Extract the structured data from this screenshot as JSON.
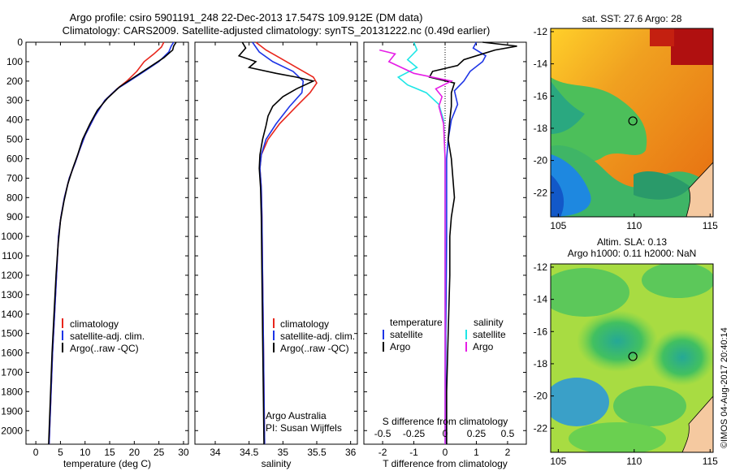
{
  "header": {
    "line1": "Argo profile: csiro 5901191_248 22-Dec-2013 17.547S 109.912E (DM data)",
    "line2": "Climatology: CARS2009. Satellite-adjusted climatology: synTS_20131222.nc (0.49d earlier)"
  },
  "colors": {
    "climatology": "#e8261c",
    "satellite": "#1e35e6",
    "argo": "#000000",
    "sal_satellite": "#1ee6e6",
    "sal_argo": "#e61ee6"
  },
  "chart_data": [
    {
      "type": "line",
      "id": "temperature",
      "xlabel": "temperature (deg C)",
      "xlim": [
        -2,
        31
      ],
      "ylim": [
        0,
        2070
      ],
      "xticks": [
        0,
        5,
        10,
        15,
        20,
        25,
        30
      ],
      "yticks": [
        0,
        100,
        200,
        300,
        400,
        500,
        600,
        700,
        800,
        900,
        1000,
        1100,
        1200,
        1300,
        1400,
        1500,
        1600,
        1700,
        1800,
        1900,
        2000
      ],
      "legend": [
        "climatology",
        "satellite-adj. clim.",
        "Argo(..raw -QC)"
      ],
      "series": [
        {
          "name": "climatology",
          "color": "climatology",
          "points": [
            [
              26,
              0
            ],
            [
              25.5,
              25
            ],
            [
              24,
              60
            ],
            [
              22,
              100
            ],
            [
              20.5,
              150
            ],
            [
              18.5,
              200
            ],
            [
              16.5,
              240
            ],
            [
              14,
              300
            ],
            [
              12,
              380
            ],
            [
              10,
              480
            ],
            [
              8.8,
              560
            ],
            [
              8,
              620
            ],
            [
              6.8,
              700
            ],
            [
              5.8,
              800
            ],
            [
              5.1,
              900
            ],
            [
              4.6,
              1000
            ],
            [
              4.2,
              1200
            ],
            [
              3.8,
              1400
            ],
            [
              3.4,
              1600
            ],
            [
              3.1,
              1800
            ],
            [
              2.8,
              2000
            ],
            [
              2.7,
              2070
            ]
          ]
        },
        {
          "name": "satellite-adj. clim.",
          "color": "satellite",
          "points": [
            [
              28,
              0
            ],
            [
              27.5,
              20
            ],
            [
              27,
              50
            ],
            [
              25,
              100
            ],
            [
              22,
              150
            ],
            [
              19,
              200
            ],
            [
              16.5,
              240
            ],
            [
              14,
              300
            ],
            [
              12,
              380
            ],
            [
              10,
              480
            ],
            [
              8.8,
              560
            ],
            [
              8,
              620
            ],
            [
              6.8,
              700
            ],
            [
              5.8,
              800
            ],
            [
              5.1,
              900
            ],
            [
              4.6,
              1000
            ],
            [
              4.2,
              1200
            ],
            [
              3.8,
              1400
            ],
            [
              3.4,
              1600
            ],
            [
              3.1,
              1800
            ],
            [
              2.8,
              2000
            ],
            [
              2.7,
              2070
            ]
          ]
        },
        {
          "name": "Argo(..raw -QC)",
          "color": "argo",
          "points": [
            [
              28.5,
              0
            ],
            [
              28,
              20
            ],
            [
              27.8,
              40
            ],
            [
              26,
              80
            ],
            [
              23,
              130
            ],
            [
              20,
              180
            ],
            [
              17,
              230
            ],
            [
              14.5,
              290
            ],
            [
              12.5,
              350
            ],
            [
              11,
              420
            ],
            [
              9.5,
              500
            ],
            [
              8.5,
              580
            ],
            [
              7.5,
              650
            ],
            [
              6.5,
              730
            ],
            [
              5.7,
              820
            ],
            [
              5,
              920
            ],
            [
              4.5,
              1050
            ],
            [
              4.1,
              1200
            ],
            [
              3.7,
              1400
            ],
            [
              3.3,
              1600
            ],
            [
              3,
              1800
            ],
            [
              2.7,
              2000
            ],
            [
              2.6,
              2070
            ]
          ]
        }
      ]
    },
    {
      "type": "line",
      "id": "salinity",
      "xlabel": "salinity",
      "xlim": [
        33.7,
        36.1
      ],
      "ylim": [
        0,
        2070
      ],
      "xticks": [
        34,
        34.5,
        35,
        35.5,
        36
      ],
      "legend": [
        "climatology",
        "satellite-adj. clim.",
        "Argo(..raw -QC)"
      ],
      "annotations": [
        "Argo Australia",
        "PI: Susan Wijffels"
      ],
      "series": [
        {
          "name": "climatology",
          "color": "climatology",
          "points": [
            [
              34.6,
              0
            ],
            [
              34.75,
              40
            ],
            [
              34.95,
              80
            ],
            [
              35.2,
              130
            ],
            [
              35.45,
              180
            ],
            [
              35.5,
              210
            ],
            [
              35.4,
              260
            ],
            [
              35.2,
              330
            ],
            [
              34.95,
              420
            ],
            [
              34.78,
              500
            ],
            [
              34.68,
              580
            ],
            [
              34.66,
              650
            ],
            [
              34.68,
              750
            ],
            [
              34.69,
              900
            ],
            [
              34.7,
              1200
            ],
            [
              34.71,
              1500
            ],
            [
              34.72,
              1800
            ],
            [
              34.73,
              2070
            ]
          ]
        },
        {
          "name": "satellite-adj. clim.",
          "color": "satellite",
          "points": [
            [
              34.55,
              0
            ],
            [
              34.65,
              50
            ],
            [
              34.85,
              100
            ],
            [
              35.15,
              150
            ],
            [
              35.3,
              200
            ],
            [
              35.28,
              260
            ],
            [
              35.1,
              330
            ],
            [
              34.9,
              420
            ],
            [
              34.75,
              500
            ],
            [
              34.68,
              580
            ],
            [
              34.66,
              650
            ],
            [
              34.68,
              750
            ],
            [
              34.69,
              900
            ],
            [
              34.7,
              1200
            ],
            [
              34.71,
              1500
            ],
            [
              34.72,
              1800
            ],
            [
              34.73,
              2070
            ]
          ]
        },
        {
          "name": "Argo(..raw -QC)",
          "color": "argo",
          "points": [
            [
              34.4,
              0
            ],
            [
              34.45,
              30
            ],
            [
              34.35,
              70
            ],
            [
              34.6,
              100
            ],
            [
              34.5,
              130
            ],
            [
              34.9,
              160
            ],
            [
              35.2,
              180
            ],
            [
              35.45,
              200
            ],
            [
              35.2,
              240
            ],
            [
              35.0,
              280
            ],
            [
              34.85,
              330
            ],
            [
              34.78,
              380
            ],
            [
              34.75,
              430
            ],
            [
              34.7,
              500
            ],
            [
              34.66,
              580
            ],
            [
              34.65,
              650
            ],
            [
              34.67,
              750
            ],
            [
              34.68,
              900
            ],
            [
              34.69,
              1200
            ],
            [
              34.7,
              1500
            ],
            [
              34.71,
              1800
            ],
            [
              34.72,
              2070
            ]
          ]
        }
      ]
    },
    {
      "type": "line",
      "id": "difference",
      "xlabel": "T difference from climatology",
      "xlabel_top": "S difference from climatology",
      "xlim": [
        -2.6,
        2.6
      ],
      "ylim": [
        0,
        2070
      ],
      "xticks": [
        -2,
        -1,
        0,
        1,
        2
      ],
      "xticks_s": [
        "-0.5",
        "-0.25",
        "0",
        "0.25",
        "0.5"
      ],
      "legend_temperature": {
        "title": "temperature",
        "items": [
          "satellite",
          "Argo"
        ]
      },
      "legend_salinity": {
        "title": "salinity",
        "items": [
          "satellite",
          "Argo"
        ]
      },
      "series": [
        {
          "name": "satellite",
          "group": "temperature",
          "color": "satellite",
          "points": [
            [
              1.0,
              0
            ],
            [
              0.9,
              30
            ],
            [
              1.3,
              70
            ],
            [
              1.2,
              100
            ],
            [
              0.8,
              150
            ],
            [
              0.6,
              200
            ],
            [
              0.3,
              250
            ],
            [
              0.4,
              320
            ],
            [
              0.2,
              400
            ],
            [
              0.1,
              500
            ],
            [
              0.05,
              600
            ],
            [
              0.05,
              800
            ],
            [
              0.05,
              1000
            ],
            [
              0.02,
              1500
            ],
            [
              0.02,
              2070
            ]
          ]
        },
        {
          "name": "Argo",
          "group": "temperature",
          "color": "argo",
          "points": [
            [
              1.2,
              0
            ],
            [
              2.3,
              20
            ],
            [
              1.6,
              40
            ],
            [
              1.2,
              60
            ],
            [
              0.6,
              90
            ],
            [
              0.4,
              120
            ],
            [
              -0.4,
              150
            ],
            [
              -0.5,
              180
            ],
            [
              0.3,
              210
            ],
            [
              0.2,
              260
            ],
            [
              0.2,
              330
            ],
            [
              0.15,
              400
            ],
            [
              0.1,
              500
            ],
            [
              0.2,
              600
            ],
            [
              0.25,
              700
            ],
            [
              0.3,
              800
            ],
            [
              0.2,
              900
            ],
            [
              0.15,
              1000
            ],
            [
              0.15,
              1200
            ],
            [
              0.1,
              1500
            ],
            [
              0.05,
              1800
            ],
            [
              0.05,
              2070
            ]
          ]
        },
        {
          "name": "satellite",
          "group": "salinity",
          "color": "sal_satellite",
          "points": [
            [
              -1.0,
              0
            ],
            [
              -0.9,
              40
            ],
            [
              -1.2,
              90
            ],
            [
              -0.9,
              130
            ],
            [
              -1.5,
              180
            ],
            [
              -1.2,
              220
            ],
            [
              -0.6,
              260
            ],
            [
              -0.2,
              320
            ],
            [
              -0.05,
              400
            ],
            [
              0,
              600
            ],
            [
              0,
              2070
            ]
          ]
        },
        {
          "name": "Argo",
          "group": "salinity",
          "color": "sal_argo",
          "points": [
            [
              -2.1,
              40
            ],
            [
              -1.6,
              60
            ],
            [
              -1.8,
              100
            ],
            [
              -1.0,
              160
            ],
            [
              0.2,
              200
            ],
            [
              -0.3,
              240
            ],
            [
              -0.1,
              280
            ],
            [
              -0.2,
              330
            ],
            [
              -0.05,
              420
            ],
            [
              0,
              600
            ],
            [
              0,
              2070
            ]
          ]
        }
      ]
    },
    {
      "type": "heatmap",
      "id": "sst-map",
      "title": "sat. SST: 27.6 Argo: 28",
      "xlim": [
        104.5,
        115.2
      ],
      "ylim": [
        -23.5,
        -11.8
      ],
      "xticks": [
        105,
        110,
        115
      ],
      "yticks": [
        -12,
        -14,
        -16,
        -18,
        -20,
        -22
      ],
      "marker": {
        "lon": 109.912,
        "lat": -17.547
      }
    },
    {
      "type": "heatmap",
      "id": "sla-map",
      "title": "Altim. SLA: 0.13",
      "subtitle": "Argo h1000: 0.11 h2000: NaN",
      "xlim": [
        104.5,
        115.2
      ],
      "ylim": [
        -23.5,
        -11.8
      ],
      "xticks": [
        105,
        110,
        115
      ],
      "yticks": [
        -12,
        -14,
        -16,
        -18,
        -20,
        -22
      ],
      "marker": {
        "lon": 109.912,
        "lat": -17.547
      }
    }
  ],
  "footer": {
    "credit": "©IMOS 04-Aug-2017 20:40:14"
  }
}
